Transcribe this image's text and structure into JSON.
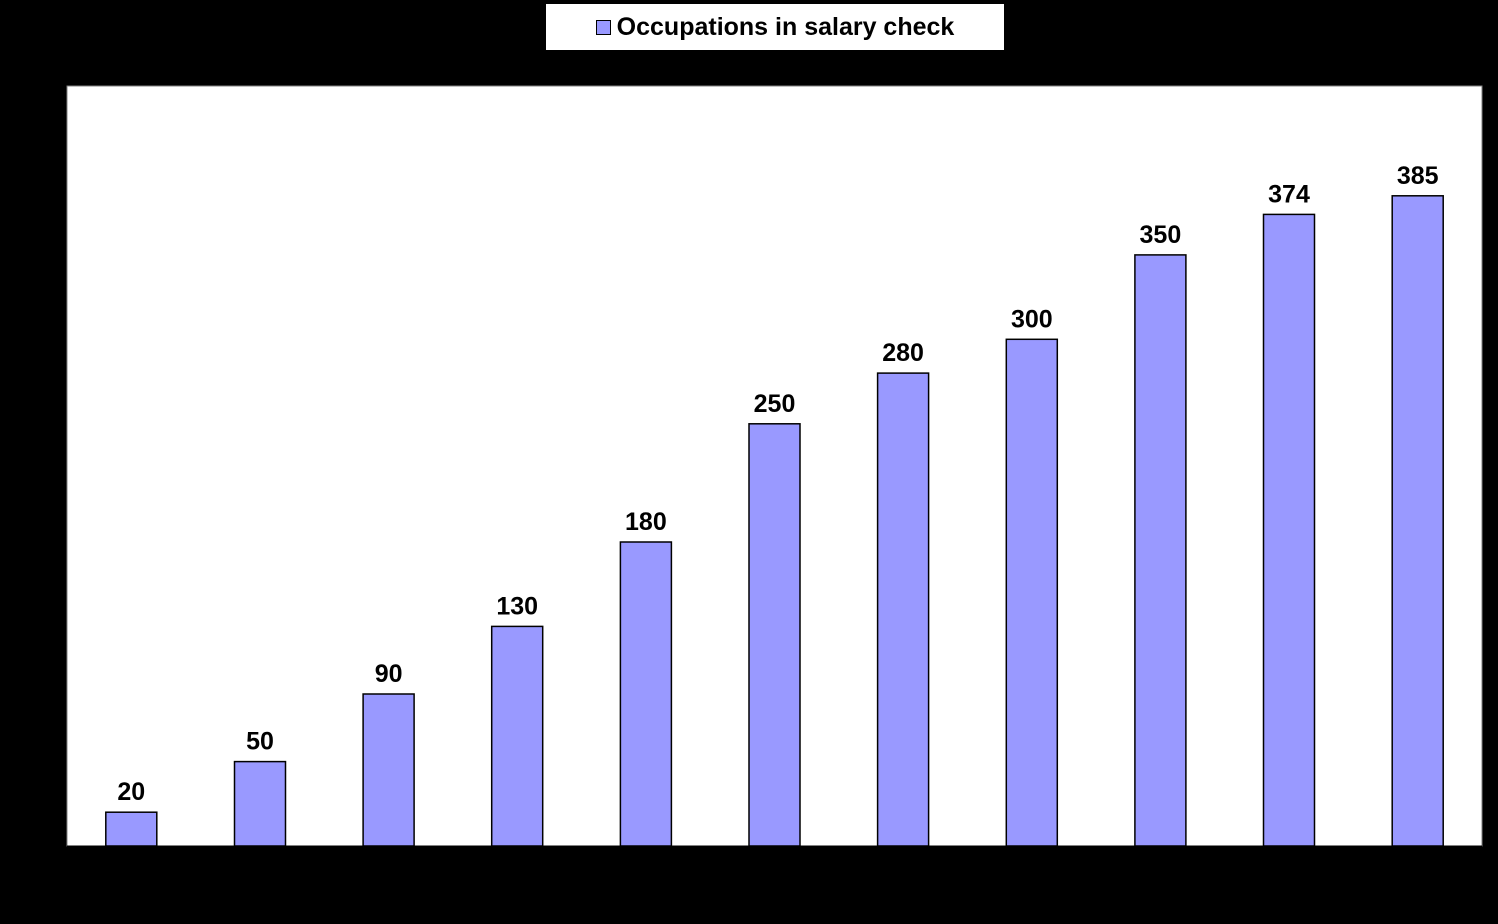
{
  "chart_data": {
    "type": "bar",
    "categories": [
      "",
      "",
      "",
      "",
      "",
      "",
      "",
      "",
      "",
      "",
      ""
    ],
    "series": [
      {
        "name": "Occupations in salary check",
        "values": [
          20,
          50,
          90,
          130,
          180,
          250,
          280,
          300,
          350,
          374,
          385
        ],
        "color": "#9999ff"
      }
    ],
    "ylim": [
      0,
      450
    ],
    "grid": false,
    "legend_position": "top-center",
    "data_labels": [
      "20",
      "50",
      "90",
      "130",
      "180",
      "250",
      "280",
      "300",
      "350",
      "374",
      "385"
    ],
    "background": "#000000",
    "plot_background": "#ffffff"
  }
}
